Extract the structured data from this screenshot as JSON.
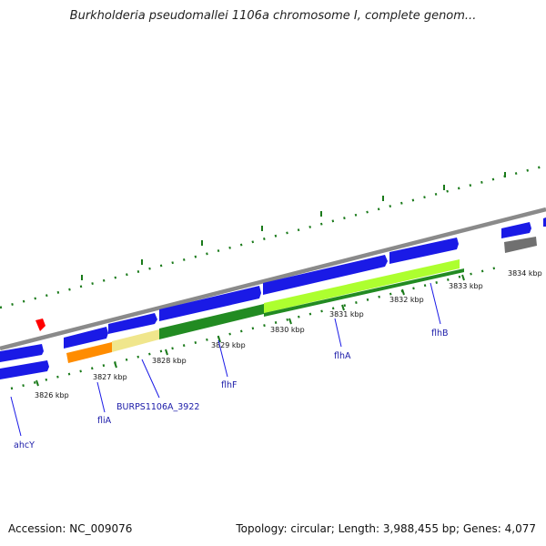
{
  "title": "Burkholderia pseudomallei 1106a chromosome I, complete genom...",
  "footer": {
    "accession": "Accession: NC_009076",
    "stats": "Topology: circular; Length: 3,988,455 bp; Genes: 4,077"
  },
  "ruler_labels": [
    "3826 kbp",
    "3827 kbp",
    "3828 kbp",
    "3829 kbp",
    "3830 kbp",
    "3831 kbp",
    "3832 kbp",
    "3833 kbp",
    "3834 kbp"
  ],
  "gene_labels": [
    "ahcY",
    "fliA",
    "BURPS1106A_3922",
    "flhF",
    "flhA",
    "flhB"
  ],
  "colors": {
    "backbone": "#8a8a8a",
    "cds_forward": "#1a1ae6",
    "tick": "#1a7a1a",
    "gene_label": "#1a1aa8",
    "orange": "#ff8c00",
    "pale_yellow": "#f0e68c",
    "dark_green": "#228b22",
    "light_green": "#adff2f",
    "gray_gene": "#707070",
    "marker": "#ff0000"
  }
}
